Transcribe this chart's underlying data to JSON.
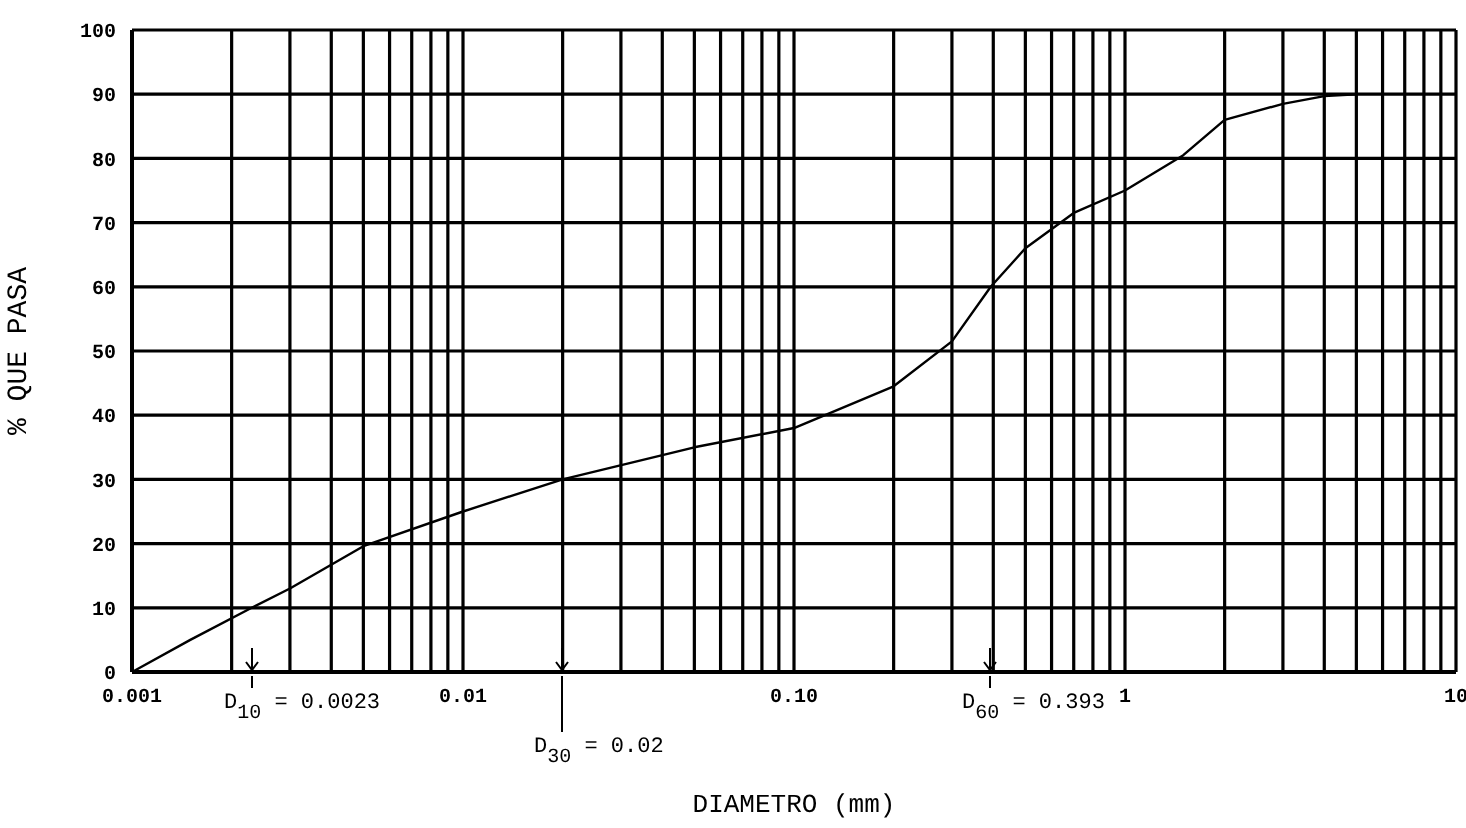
{
  "chart_data": {
    "type": "line",
    "xlabel": "DIAMETRO    (mm)",
    "ylabel": "% QUE PASA",
    "log": "x",
    "grid": true,
    "marker": "none",
    "line_style": "solid",
    "xlim": [
      0.001,
      10
    ],
    "ylim": [
      0,
      100
    ],
    "xticks": [
      {
        "value": 0.001,
        "label": "0.001"
      },
      {
        "value": 0.002,
        "label": null
      },
      {
        "value": 0.003,
        "label": null
      },
      {
        "value": 0.004,
        "label": null
      },
      {
        "value": 0.005,
        "label": null
      },
      {
        "value": 0.006,
        "label": null
      },
      {
        "value": 0.007,
        "label": null
      },
      {
        "value": 0.008,
        "label": null
      },
      {
        "value": 0.009,
        "label": null
      },
      {
        "value": 0.01,
        "label": "0.01"
      },
      {
        "value": 0.02,
        "label": null
      },
      {
        "value": 0.03,
        "label": null
      },
      {
        "value": 0.04,
        "label": null
      },
      {
        "value": 0.05,
        "label": null
      },
      {
        "value": 0.06,
        "label": null
      },
      {
        "value": 0.07,
        "label": null
      },
      {
        "value": 0.08,
        "label": null
      },
      {
        "value": 0.09,
        "label": null
      },
      {
        "value": 0.1,
        "label": "0.10"
      },
      {
        "value": 0.2,
        "label": null
      },
      {
        "value": 0.3,
        "label": null
      },
      {
        "value": 0.4,
        "label": null
      },
      {
        "value": 0.5,
        "label": null
      },
      {
        "value": 0.6,
        "label": null
      },
      {
        "value": 0.7,
        "label": null
      },
      {
        "value": 0.8,
        "label": null
      },
      {
        "value": 0.9,
        "label": null
      },
      {
        "value": 1,
        "label": "1"
      },
      {
        "value": 2,
        "label": null
      },
      {
        "value": 3,
        "label": null
      },
      {
        "value": 4,
        "label": null
      },
      {
        "value": 5,
        "label": null
      },
      {
        "value": 6,
        "label": null
      },
      {
        "value": 7,
        "label": null
      },
      {
        "value": 8,
        "label": null
      },
      {
        "value": 9,
        "label": null
      },
      {
        "value": 10,
        "label": "10"
      }
    ],
    "yticks": [
      0,
      10,
      20,
      30,
      40,
      50,
      60,
      70,
      80,
      90,
      100
    ],
    "series": [
      {
        "color": "#000000",
        "x": [
          0.001,
          0.0015,
          0.0023,
          0.003,
          0.005,
          0.01,
          0.02,
          0.05,
          0.1,
          0.2,
          0.3,
          0.393,
          0.5,
          0.7,
          1,
          1.5,
          2,
          3,
          4,
          5
        ],
        "values": [
          0,
          5,
          10,
          13,
          19.6,
          25,
          30,
          35,
          38,
          44.5,
          51.5,
          60,
          66,
          71.5,
          75,
          80.5,
          86,
          88.5,
          89.7,
          90
        ]
      }
    ],
    "annotations": [
      "D$_{10}$ = 0.0023",
      "D$_{30}$ = 0.02",
      "D$_{60}$ = 0.393"
    ]
  }
}
